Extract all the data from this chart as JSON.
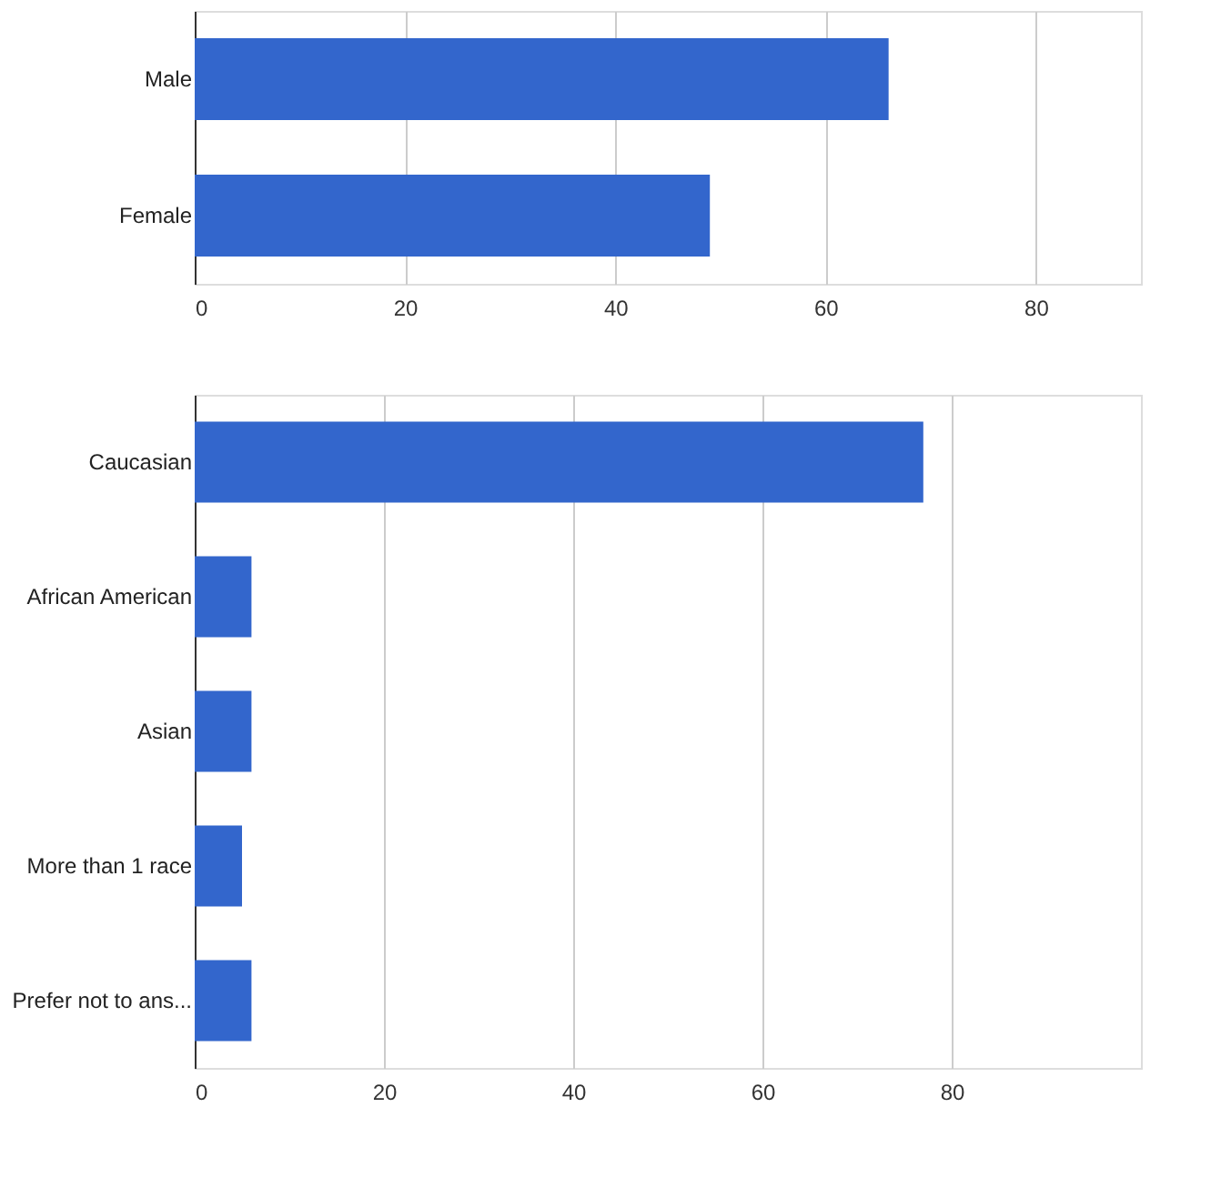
{
  "chart_data": [
    {
      "type": "bar",
      "orientation": "horizontal",
      "categories": [
        "Male",
        "Female"
      ],
      "values": [
        66,
        49
      ],
      "color": "#3366cc",
      "xlim": [
        0,
        90
      ],
      "xticks": [
        0,
        20,
        40,
        60,
        80
      ],
      "grid": "x"
    },
    {
      "type": "bar",
      "orientation": "horizontal",
      "categories": [
        "Caucasian",
        "African American",
        "Asian",
        "More than 1 race",
        "Prefer not to ans..."
      ],
      "values": [
        77,
        6,
        6,
        5,
        6
      ],
      "color": "#3366cc",
      "xlim": [
        0,
        100
      ],
      "xticks": [
        0,
        20,
        40,
        60,
        80
      ],
      "grid": "x"
    }
  ]
}
